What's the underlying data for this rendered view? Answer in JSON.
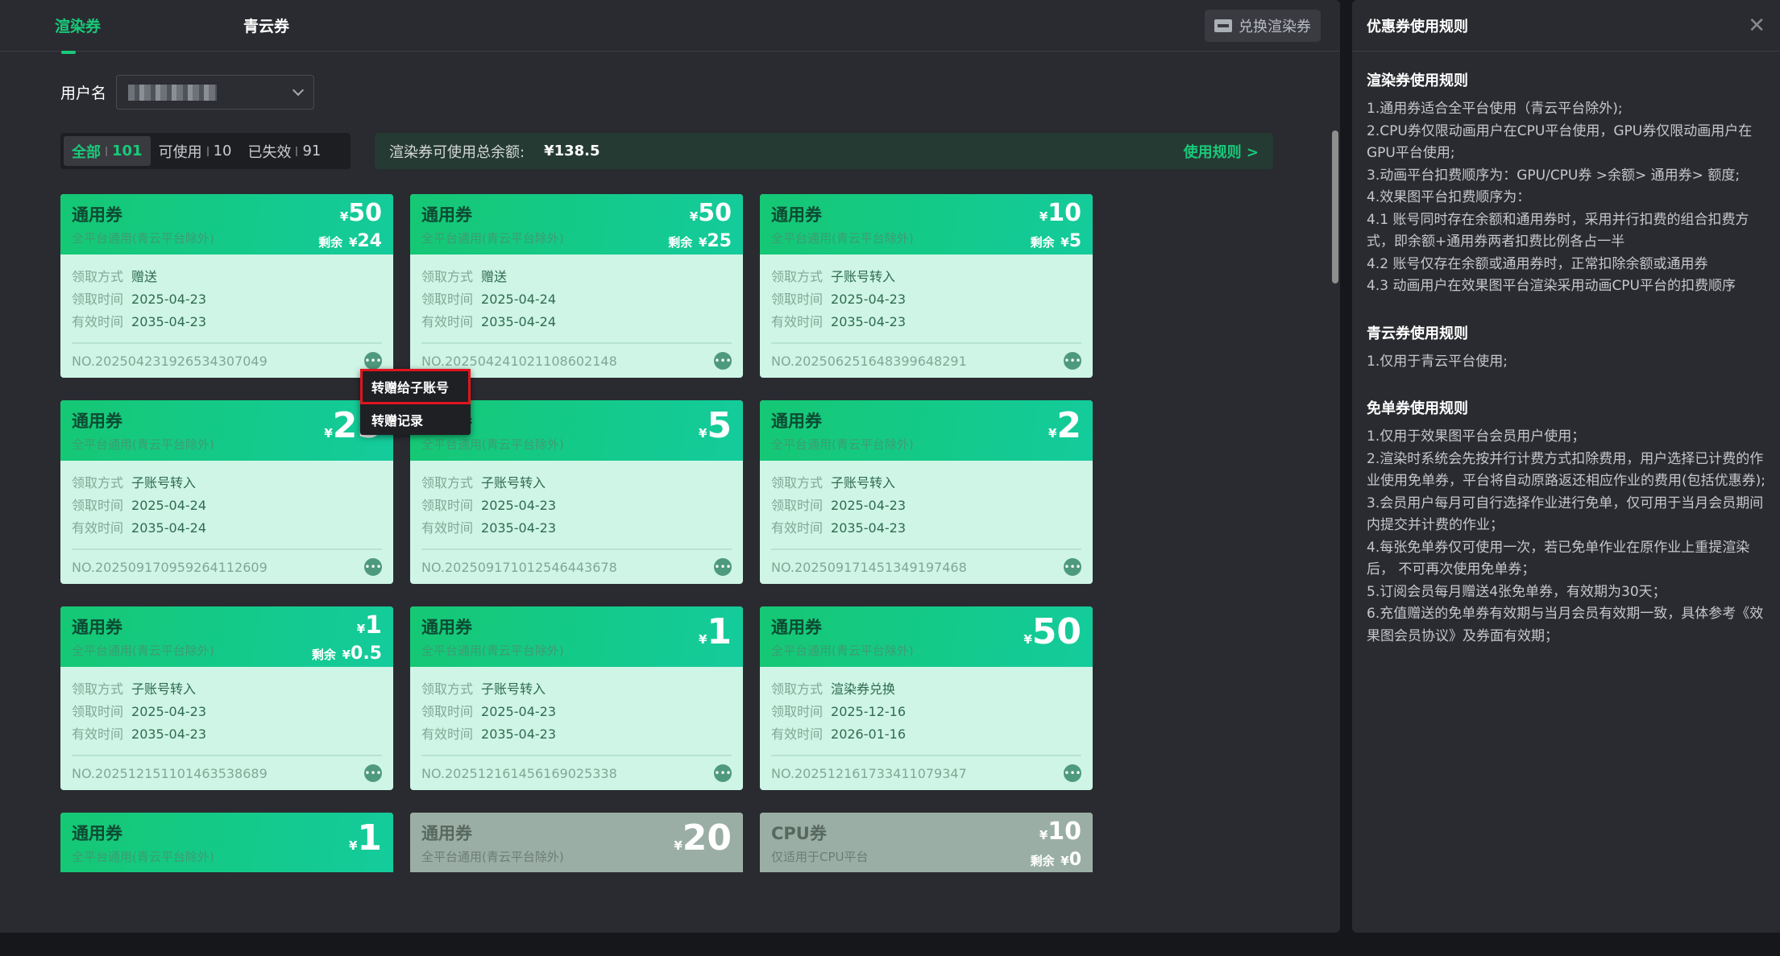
{
  "tabs": [
    {
      "label": "渲染券",
      "active": true
    },
    {
      "label": "青云券",
      "active": false
    }
  ],
  "redeem_button": "兑换渲染券",
  "username_label": "用户名",
  "filters": [
    {
      "label": "全部",
      "count": "101",
      "active": true
    },
    {
      "label": "可使用",
      "count": "10"
    },
    {
      "label": "已失效",
      "count": "91"
    }
  ],
  "balance": {
    "label": "渲染券可使用总余额:",
    "value": "¥138.5",
    "rules_link": "使用规则 >"
  },
  "field_labels": {
    "method": "领取方式",
    "time": "领取时间",
    "valid": "有效时间"
  },
  "currency": "¥",
  "remain_label": "剩余",
  "cards": [
    {
      "title": "通用券",
      "sub": "全平台通用(青云平台除外)",
      "amount": "50",
      "remain": "24",
      "method": "赠送",
      "time": "2025-04-23",
      "valid": "2035-04-23",
      "no": "NO.202504231926534307049"
    },
    {
      "title": "通用券",
      "sub": "全平台通用(青云平台除外)",
      "amount": "50",
      "remain": "25",
      "method": "赠送",
      "time": "2025-04-24",
      "valid": "2035-04-24",
      "no": "NO.202504241021108602148"
    },
    {
      "title": "通用券",
      "sub": "全平台通用(青云平台除外)",
      "amount": "10",
      "remain": "5",
      "method": "子账号转入",
      "time": "2025-04-23",
      "valid": "2035-04-23",
      "no": "NO.202506251648399648291"
    },
    {
      "title": "通用券",
      "sub": "全平台通用(青云平台除外)",
      "amount": "25",
      "method": "子账号转入",
      "time": "2025-04-24",
      "valid": "2035-04-24",
      "no": "NO.202509170959264112609"
    },
    {
      "title": "通用券",
      "sub": "全平台通用(青云平台除外)",
      "amount": "5",
      "method": "子账号转入",
      "time": "2025-04-23",
      "valid": "2035-04-23",
      "no": "NO.202509171012546443678"
    },
    {
      "title": "通用券",
      "sub": "全平台通用(青云平台除外)",
      "amount": "2",
      "method": "子账号转入",
      "time": "2025-04-23",
      "valid": "2035-04-23",
      "no": "NO.202509171451349197468"
    },
    {
      "title": "通用券",
      "sub": "全平台通用(青云平台除外)",
      "amount": "1",
      "remain": "0.5",
      "method": "子账号转入",
      "time": "2025-04-23",
      "valid": "2035-04-23",
      "no": "NO.202512151101463538689"
    },
    {
      "title": "通用券",
      "sub": "全平台通用(青云平台除外)",
      "amount": "1",
      "method": "子账号转入",
      "time": "2025-04-23",
      "valid": "2035-04-23",
      "no": "NO.202512161456169025338"
    },
    {
      "title": "通用券",
      "sub": "全平台通用(青云平台除外)",
      "amount": "50",
      "method": "渲染券兑换",
      "time": "2025-12-16",
      "valid": "2026-01-16",
      "no": "NO.202512161733411079347"
    },
    {
      "title": "通用券",
      "sub": "全平台通用(青云平台除外)",
      "amount": "1"
    },
    {
      "title": "通用券",
      "sub": "全平台通用(青云平台除外)",
      "amount": "20",
      "expired": true
    },
    {
      "title": "CPU券",
      "sub": "仅适用于CPU平台",
      "amount": "10",
      "remain": "0",
      "expired": true
    }
  ],
  "popup": [
    "转赠给子账号",
    "转赠记录"
  ],
  "panel": {
    "title": "优惠券使用规则",
    "sections": [
      {
        "title": "渲染券使用规则",
        "lines": [
          "1.通用券适合全平台使用（青云平台除外);",
          "2.CPU券仅限动画用户在CPU平台使用，GPU券仅限动画用户在GPU平台使用;",
          "3.动画平台扣费顺序为：GPU/CPU券 >余额> 通用券> 额度;",
          "4.效果图平台扣费顺序为：",
          "4.1 账号同时存在余额和通用券时，采用并行扣费的组合扣费方式，即余额+通用券两者扣费比例各占一半",
          "4.2 账号仅存在余额或通用券时，正常扣除余额或通用券",
          "4.3 动画用户在效果图平台渲染采用动画CPU平台的扣费顺序"
        ]
      },
      {
        "title": "青云券使用规则",
        "lines": [
          "1.仅用于青云平台使用;"
        ]
      },
      {
        "title": "免单券使用规则",
        "lines": [
          "1.仅用于效果图平台会员用户使用；",
          "2.渲染时系统会先按并行计费方式扣除费用，用户选择已计费的作业使用免单券，平台将自动原路返还相应作业的费用(包括优惠券);",
          "3.会员用户每月可自行选择作业进行免单，仅可用于当月会员期间内提交并计费的作业；",
          "4.每张免单券仅可使用一次，若已免单作业在原作业上重提渲染后， 不可再次使用免单券；",
          "5.订阅会员每月赠送4张免单券，有效期为30天；",
          "6.充值赠送的免单券有效期与当月会员有效期一致，具体参考《效果图会员协议》及券面有效期；"
        ]
      }
    ]
  },
  "colors": {
    "accent": "#19c97a",
    "card_header": "#15c874",
    "card_body": "#cff5e6",
    "expired_header": "#9aaea5",
    "highlight": "#e0141e"
  }
}
